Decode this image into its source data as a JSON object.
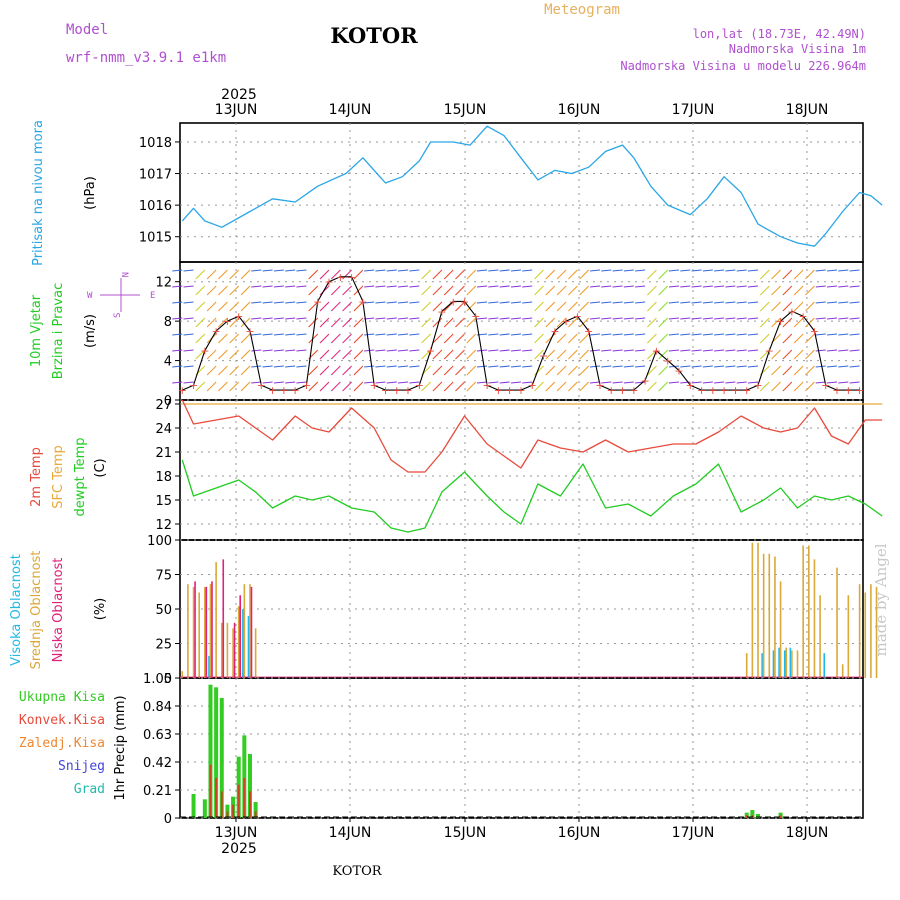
{
  "header": {
    "model_label": "Model",
    "model_name": "wrf-nmm_v3.9.1  e1km",
    "station": "KOTOR",
    "meteogram_label": "Meteogram",
    "lonlat": "lon,lat (18.73E, 42.49N)",
    "elevation": "Nadmorska Visina 1m",
    "model_elevation": "Nadmorska Visina u modelu 226.964m",
    "year_top": "2025",
    "year_bottom": "2025",
    "footer_station": "KOTOR",
    "credit": "made by Angel"
  },
  "colors": {
    "pressure": "#2aa6e6",
    "temp2m": "#e84a3c",
    "sfc_temp": "#e8a93c",
    "dewpt": "#22cc22",
    "high_cloud": "#22b8e6",
    "mid_cloud": "#dba83a",
    "low_cloud": "#e0207a",
    "header_purple": "#b050d0",
    "header_orange": "#e8b060"
  },
  "panel_labels": {
    "pressure": [
      "Pritisak na nivou mora",
      "(hPa)"
    ],
    "wind": [
      "10m Vjetar",
      "Brzina i Pravac",
      "(m/s)"
    ],
    "compass": {
      "n": "N",
      "s": "S",
      "e": "E",
      "w": "W"
    },
    "temp": [
      "2m Temp",
      "SFC Temp",
      "dewpt Temp",
      "(C)"
    ],
    "cloud": [
      "Visoka Oblacnost",
      "Srednja Oblacnost",
      "Niska Oblacnost",
      "(%)"
    ],
    "precip": [
      "1hr Precip (mm)"
    ],
    "precip_legend": [
      "Ukupna Kisa",
      "Konvek.Kisa",
      "Zaledj.Kisa",
      "Snijeg",
      "Grad"
    ]
  },
  "chart_data": [
    {
      "type": "line",
      "title": "Pritisak na nivou mora",
      "ylabel": "(hPa)",
      "x_ticks": [
        "13JUN",
        "14JUN",
        "15JUN",
        "16JUN",
        "17JUN",
        "18JUN"
      ],
      "ylim": [
        1014.2,
        1018.6
      ],
      "y_ticks": [
        "1015",
        "1016",
        "1017",
        "1018"
      ],
      "x": [
        0.0,
        0.1,
        0.2,
        0.35,
        0.6,
        0.8,
        1.0,
        1.2,
        1.45,
        1.6,
        1.8,
        1.95,
        2.1,
        2.2,
        2.4,
        2.55,
        2.7,
        2.85,
        3.0,
        3.15,
        3.3,
        3.45,
        3.6,
        3.75,
        3.9,
        4.0,
        4.15,
        4.3,
        4.5,
        4.65,
        4.8,
        4.95,
        5.1,
        5.3,
        5.45,
        5.6,
        5.7,
        5.85,
        6.0,
        6.1,
        6.2
      ],
      "series": [
        {
          "values": [
            1015.5,
            1015.9,
            1015.5,
            1015.3,
            1015.8,
            1016.2,
            1016.1,
            1016.6,
            1017.0,
            1017.5,
            1016.7,
            1016.9,
            1017.4,
            1018.0,
            1018.0,
            1017.9,
            1018.5,
            1018.2,
            1017.5,
            1016.8,
            1017.1,
            1017.0,
            1017.2,
            1017.7,
            1017.9,
            1017.5,
            1016.6,
            1016.0,
            1015.7,
            1016.2,
            1016.9,
            1016.4,
            1015.4,
            1015.0,
            1014.8,
            1014.7,
            1015.1,
            1015.8,
            1016.4,
            1016.3,
            1016.0
          ]
        }
      ]
    },
    {
      "type": "line",
      "title": "10m Vjetar Brzina i Pravac",
      "ylabel": "(m/s)",
      "ylim": [
        0,
        14
      ],
      "y_ticks": [
        "0",
        "4",
        "8",
        "12"
      ],
      "x": [
        0.0,
        0.1,
        0.2,
        0.3,
        0.4,
        0.5,
        0.6,
        0.7,
        0.8,
        0.9,
        1.0,
        1.1,
        1.2,
        1.3,
        1.4,
        1.5,
        1.6,
        1.7,
        1.8,
        1.9,
        2.0,
        2.1,
        2.2,
        2.3,
        2.4,
        2.5,
        2.6,
        2.7,
        2.8,
        2.9,
        3.0,
        3.1,
        3.2,
        3.3,
        3.4,
        3.5,
        3.6,
        3.7,
        3.8,
        3.9,
        4.0,
        4.1,
        4.2,
        4.3,
        4.4,
        4.5,
        4.6,
        4.7,
        4.8,
        4.9,
        5.0,
        5.1,
        5.2,
        5.3,
        5.4,
        5.5,
        5.6,
        5.7,
        5.8,
        5.9,
        6.0
      ],
      "series": [
        {
          "name": "speed",
          "values": [
            1.0,
            1.5,
            5.0,
            7.0,
            8.0,
            8.5,
            7.0,
            1.5,
            1.0,
            1.0,
            1.0,
            1.5,
            10.0,
            12.0,
            12.5,
            12.5,
            10.0,
            1.5,
            1.0,
            1.0,
            1.0,
            1.5,
            5.0,
            9.0,
            10.0,
            10.0,
            8.5,
            1.5,
            1.0,
            1.0,
            1.0,
            1.5,
            4.5,
            7.0,
            8.0,
            8.5,
            7.0,
            1.5,
            1.0,
            1.0,
            1.0,
            2.0,
            5.0,
            4.0,
            3.0,
            1.5,
            1.0,
            1.0,
            1.0,
            1.0,
            1.0,
            1.5,
            5.0,
            8.0,
            9.0,
            8.5,
            7.0,
            1.5,
            1.0,
            1.0,
            1.0
          ]
        }
      ]
    },
    {
      "type": "line",
      "title": "2m Temp / SFC Temp / dewpt Temp",
      "ylabel": "(C)",
      "ylim": [
        10,
        27.5
      ],
      "y_ticks": [
        "12",
        "15",
        "18",
        "21",
        "24",
        "27"
      ],
      "x": [
        0.0,
        0.1,
        0.3,
        0.5,
        0.65,
        0.8,
        1.0,
        1.15,
        1.3,
        1.5,
        1.7,
        1.85,
        2.0,
        2.15,
        2.3,
        2.5,
        2.7,
        2.85,
        3.0,
        3.15,
        3.35,
        3.55,
        3.75,
        3.95,
        4.15,
        4.35,
        4.55,
        4.75,
        4.95,
        5.15,
        5.3,
        5.45,
        5.6,
        5.75,
        5.9,
        6.05,
        6.2
      ],
      "series": [
        {
          "name": "2m Temp",
          "values": [
            27.5,
            24.5,
            25.0,
            25.5,
            24.0,
            22.5,
            25.5,
            24.0,
            23.5,
            26.5,
            24.0,
            20.0,
            18.5,
            18.5,
            21.0,
            25.5,
            22.0,
            20.5,
            19.0,
            22.5,
            21.5,
            21.0,
            22.5,
            21.0,
            21.5,
            22.0,
            22.0,
            23.5,
            25.5,
            24.0,
            23.5,
            24.0,
            26.5,
            23.0,
            22.0,
            25.0,
            25.0
          ]
        },
        {
          "name": "SFC Temp",
          "values": [
            27.0,
            27.0,
            27.0,
            27.0,
            27.0,
            27.0,
            27.0,
            27.0,
            27.0,
            27.0,
            27.0,
            27.0,
            27.0,
            27.0,
            27.0,
            27.0,
            27.0,
            27.0,
            27.0,
            27.0,
            27.0,
            27.0,
            27.0,
            27.0,
            27.0,
            27.0,
            27.0,
            27.0,
            27.0,
            27.0,
            27.0,
            27.0,
            27.0,
            27.0,
            27.0,
            27.0,
            27.0
          ]
        },
        {
          "name": "dewpt Temp",
          "values": [
            20.0,
            15.5,
            16.5,
            17.5,
            16.0,
            14.0,
            15.5,
            15.0,
            15.5,
            14.0,
            13.5,
            11.5,
            11.0,
            11.5,
            16.0,
            18.5,
            15.5,
            13.5,
            12.0,
            17.0,
            15.5,
            19.5,
            14.0,
            14.5,
            13.0,
            15.5,
            17.0,
            19.5,
            13.5,
            15.0,
            16.5,
            14.0,
            15.5,
            15.0,
            15.5,
            14.5,
            13.0
          ]
        }
      ]
    },
    {
      "type": "bar",
      "title": "Visoka / Srednja / Niska Oblacnost",
      "ylabel": "(%)",
      "ylim": [
        0,
        100
      ],
      "y_ticks": [
        "0",
        "25",
        "50",
        "75",
        "100"
      ],
      "x": [
        0.0,
        0.05,
        0.1,
        0.15,
        0.2,
        0.25,
        0.3,
        0.35,
        0.4,
        0.45,
        0.5,
        0.55,
        0.6,
        0.65,
        0.7,
        5.0,
        5.05,
        5.1,
        5.15,
        5.2,
        5.25,
        5.3,
        5.35,
        5.4,
        5.45,
        5.5,
        5.55,
        5.6,
        5.65,
        5.7,
        5.75,
        5.8,
        5.85,
        5.9,
        5.95,
        6.0,
        6.05,
        6.1,
        6.15
      ],
      "series": [
        {
          "name": "Visoka Oblacnost",
          "values": [
            0,
            0,
            0,
            0,
            0,
            16,
            0,
            0,
            0,
            0,
            0,
            50,
            45,
            0,
            0,
            0,
            0,
            0,
            18,
            0,
            20,
            22,
            20,
            22,
            0,
            0,
            0,
            0,
            0,
            18,
            0,
            0,
            0,
            0,
            0,
            0,
            0,
            0,
            0
          ]
        },
        {
          "name": "Srednja Oblacnost",
          "values": [
            5,
            68,
            66,
            62,
            66,
            68,
            84,
            40,
            40,
            36,
            52,
            68,
            68,
            36,
            0,
            18,
            98,
            98,
            90,
            90,
            88,
            70,
            22,
            20,
            20,
            96,
            96,
            86,
            60,
            0,
            0,
            80,
            10,
            60,
            0,
            68,
            62,
            68,
            66
          ]
        },
        {
          "name": "Niska Oblacnost",
          "values": [
            0,
            0,
            70,
            0,
            66,
            70,
            0,
            86,
            0,
            40,
            60,
            0,
            66,
            0,
            0,
            0,
            0,
            0,
            0,
            0,
            0,
            0,
            0,
            0,
            0,
            0,
            0,
            0,
            0,
            0,
            0,
            0,
            0,
            0,
            0,
            0,
            0,
            0,
            0
          ]
        }
      ]
    },
    {
      "type": "bar",
      "title": "1hr Precip (mm)",
      "ylabel": "1hr Precip (mm)",
      "ylim": [
        0,
        1.05
      ],
      "y_ticks": [
        "0",
        "0.21",
        "0.42",
        "0.63",
        "0.84",
        "1.05"
      ],
      "x": [
        0.1,
        0.15,
        0.2,
        0.25,
        0.3,
        0.35,
        0.4,
        0.45,
        0.5,
        0.55,
        0.6,
        0.65,
        0.7,
        5.0,
        5.05,
        5.1,
        5.3
      ],
      "series": [
        {
          "name": "Ukupna Kisa",
          "values": [
            0.18,
            0.0,
            0.14,
            1.0,
            0.98,
            0.9,
            0.1,
            0.16,
            0.46,
            0.62,
            0.48,
            0.12,
            0.0,
            0.04,
            0.06,
            0.03,
            0.04
          ]
        },
        {
          "name": "Konvek.Kisa",
          "values": [
            0.0,
            0.0,
            0.0,
            0.4,
            0.3,
            0.2,
            0.05,
            0.1,
            0.25,
            0.3,
            0.2,
            0.05,
            0.0,
            0.02,
            0.02,
            0.0,
            0.02
          ]
        }
      ]
    }
  ]
}
